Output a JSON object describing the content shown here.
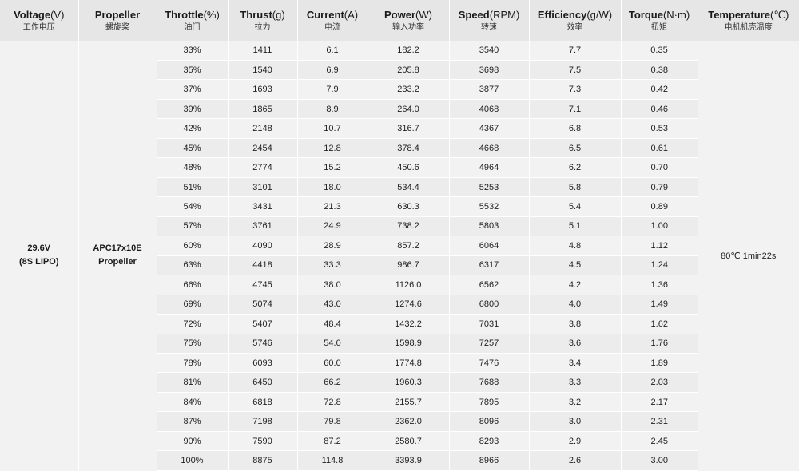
{
  "headers": [
    {
      "en": "Voltage",
      "unit": "(V)",
      "zh": "工作电压"
    },
    {
      "en": "Propeller",
      "unit": "",
      "zh": "螺旋桨"
    },
    {
      "en": "Throttle",
      "unit": "(%)",
      "zh": "油门"
    },
    {
      "en": "Thrust",
      "unit": "(g)",
      "zh": "拉力"
    },
    {
      "en": "Current",
      "unit": "(A)",
      "zh": "电流"
    },
    {
      "en": "Power",
      "unit": "(W)",
      "zh": "输入功率"
    },
    {
      "en": "Speed",
      "unit": "(RPM)",
      "zh": "转速"
    },
    {
      "en": "Efficiency",
      "unit": "(g/W)",
      "zh": "效率"
    },
    {
      "en": "Torque",
      "unit": "(N·m)",
      "zh": "扭矩"
    },
    {
      "en": "Temperature",
      "unit": "(℃)",
      "zh": "电机机壳温度"
    }
  ],
  "voltage": {
    "line1": "29.6V",
    "line2": "(8S LIPO)"
  },
  "propeller": {
    "line1": "APC17x10E",
    "line2": "Propeller"
  },
  "temperature": "80℃  1min22s",
  "rows": [
    [
      "33%",
      "1411",
      "6.1",
      "182.2",
      "3540",
      "7.7",
      "0.35"
    ],
    [
      "35%",
      "1540",
      "6.9",
      "205.8",
      "3698",
      "7.5",
      "0.38"
    ],
    [
      "37%",
      "1693",
      "7.9",
      "233.2",
      "3877",
      "7.3",
      "0.42"
    ],
    [
      "39%",
      "1865",
      "8.9",
      "264.0",
      "4068",
      "7.1",
      "0.46"
    ],
    [
      "42%",
      "2148",
      "10.7",
      "316.7",
      "4367",
      "6.8",
      "0.53"
    ],
    [
      "45%",
      "2454",
      "12.8",
      "378.4",
      "4668",
      "6.5",
      "0.61"
    ],
    [
      "48%",
      "2774",
      "15.2",
      "450.6",
      "4964",
      "6.2",
      "0.70"
    ],
    [
      "51%",
      "3101",
      "18.0",
      "534.4",
      "5253",
      "5.8",
      "0.79"
    ],
    [
      "54%",
      "3431",
      "21.3",
      "630.3",
      "5532",
      "5.4",
      "0.89"
    ],
    [
      "57%",
      "3761",
      "24.9",
      "738.2",
      "5803",
      "5.1",
      "1.00"
    ],
    [
      "60%",
      "4090",
      "28.9",
      "857.2",
      "6064",
      "4.8",
      "1.12"
    ],
    [
      "63%",
      "4418",
      "33.3",
      "986.7",
      "6317",
      "4.5",
      "1.24"
    ],
    [
      "66%",
      "4745",
      "38.0",
      "1126.0",
      "6562",
      "4.2",
      "1.36"
    ],
    [
      "69%",
      "5074",
      "43.0",
      "1274.6",
      "6800",
      "4.0",
      "1.49"
    ],
    [
      "72%",
      "5407",
      "48.4",
      "1432.2",
      "7031",
      "3.8",
      "1.62"
    ],
    [
      "75%",
      "5746",
      "54.0",
      "1598.9",
      "7257",
      "3.6",
      "1.76"
    ],
    [
      "78%",
      "6093",
      "60.0",
      "1774.8",
      "7476",
      "3.4",
      "1.89"
    ],
    [
      "81%",
      "6450",
      "66.2",
      "1960.3",
      "7688",
      "3.3",
      "2.03"
    ],
    [
      "84%",
      "6818",
      "72.8",
      "2155.7",
      "7895",
      "3.2",
      "2.17"
    ],
    [
      "87%",
      "7198",
      "79.8",
      "2362.0",
      "8096",
      "3.0",
      "2.31"
    ],
    [
      "90%",
      "7590",
      "87.2",
      "2580.7",
      "8293",
      "2.9",
      "2.45"
    ],
    [
      "100%",
      "8875",
      "114.8",
      "3393.9",
      "8966",
      "2.6",
      "3.00"
    ]
  ]
}
